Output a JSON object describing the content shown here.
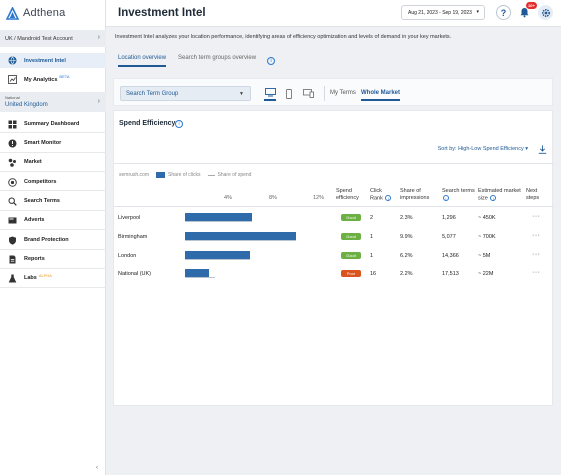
{
  "app": {
    "brand": "Adthena",
    "page_title": "Investment Intel",
    "date_range": "Aug 21, 2023 - Sep 19, 2023",
    "notification_count": "10+",
    "help_label": "?",
    "colors": {
      "accent": "#1f5a96",
      "bar": "#2f6bab",
      "good": "#6cb043",
      "poor": "#d9541e",
      "badge": "#e0312f"
    }
  },
  "sidebar": {
    "account": "UK / Mandroid Test Account",
    "national_label": "National",
    "national_value": "United Kingdom",
    "items": [
      {
        "label": "Investment Intel",
        "icon": "globe-icon"
      },
      {
        "label": "My Analytics",
        "icon": "analytics-icon",
        "tag": "BETA"
      },
      {
        "label": "Summary Dashboard",
        "icon": "dashboard-icon"
      },
      {
        "label": "Smart Monitor",
        "icon": "alert-icon"
      },
      {
        "label": "Market",
        "icon": "market-icon"
      },
      {
        "label": "Competitors",
        "icon": "competitors-icon"
      },
      {
        "label": "Search Terms",
        "icon": "search-icon"
      },
      {
        "label": "Adverts",
        "icon": "adverts-icon"
      },
      {
        "label": "Brand Protection",
        "icon": "shield-icon"
      },
      {
        "label": "Reports",
        "icon": "reports-icon"
      },
      {
        "label": "Labs",
        "icon": "labs-icon",
        "tag": "ALPHA"
      }
    ]
  },
  "content": {
    "intro": "Investment Intel analyzes your location performance, identifying areas of efficiency optimization and levels of demand in your key markets.",
    "tabs": [
      "Location overview",
      "Search term groups overview"
    ],
    "filter": {
      "group_select": "Search Term Group",
      "market_tabs": [
        "My Terms",
        "Whole Market"
      ]
    },
    "panel": {
      "title": "Spend Efficiency",
      "sort_label": "Sort by: High-Low Spend Efficiency",
      "legend": {
        "source": "semrush.com",
        "clicks": "Share of clicks",
        "spend": "Share of spend"
      },
      "ticks": [
        "4%",
        "8%",
        "12%"
      ],
      "headers": {
        "spend_efficiency": "Spend efficiency",
        "click_rank": "Click Rank",
        "share_impressions": "Share of impressions",
        "search_terms": "Search terms",
        "market_size": "Estimated market size",
        "next_steps": "Next steps"
      }
    }
  },
  "chart_data": {
    "type": "bar",
    "categories": [
      "Liverpool",
      "Birmingham",
      "London",
      "National (UK)"
    ],
    "series": [
      {
        "name": "Share of clicks",
        "values": [
          6.2,
          10.2,
          6.0,
          2.2
        ]
      },
      {
        "name": "Share of spend",
        "values": [
          6.2,
          10.2,
          6.0,
          2.8
        ]
      }
    ],
    "xlim": [
      0,
      12
    ],
    "ticks": [
      "4%",
      "8%",
      "12%"
    ],
    "rows": [
      {
        "location": "Liverpool",
        "efficiency": "Good",
        "click_rank": "2",
        "share_impressions": "2.3%",
        "search_terms": "1,296",
        "market_size": "~ 450K"
      },
      {
        "location": "Birmingham",
        "efficiency": "Good",
        "click_rank": "1",
        "share_impressions": "9.9%",
        "search_terms": "5,077",
        "market_size": "~ 700K"
      },
      {
        "location": "London",
        "efficiency": "Good",
        "click_rank": "1",
        "share_impressions": "6.2%",
        "search_terms": "14,366",
        "market_size": "~ 5M"
      },
      {
        "location": "National (UK)",
        "efficiency": "Poor",
        "click_rank": "16",
        "share_impressions": "2.2%",
        "search_terms": "17,513",
        "market_size": "~ 22M"
      }
    ]
  }
}
